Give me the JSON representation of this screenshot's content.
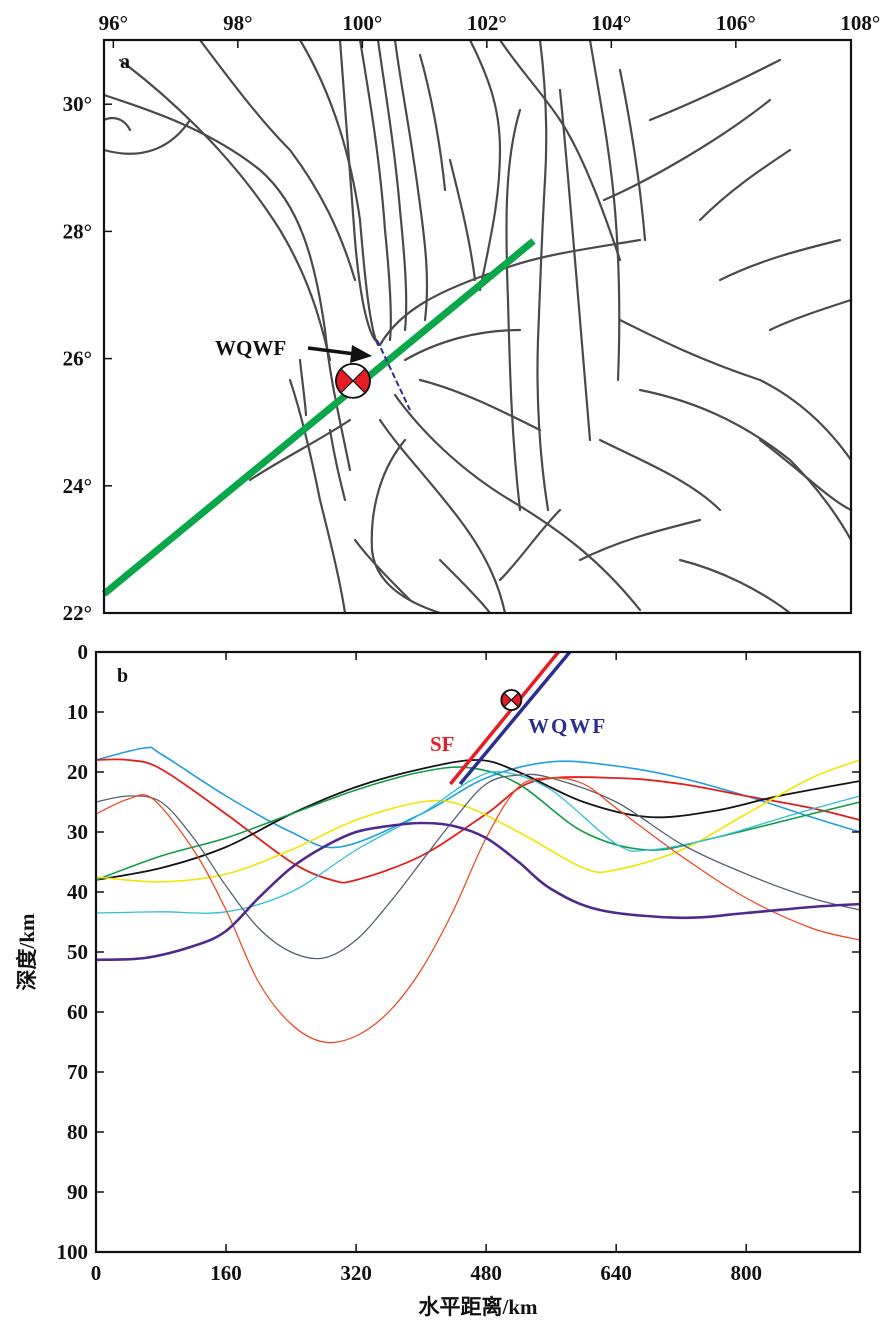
{
  "chart_data": [
    {
      "type": "map",
      "panel_label": "a",
      "lon_range": [
        95.85,
        107.85
      ],
      "lat_range": [
        22,
        31
      ],
      "x_tick_labels": [
        "96°",
        "98°",
        "100°",
        "102°",
        "104°",
        "106°",
        "108°"
      ],
      "x_ticks": [
        96,
        98,
        100,
        102,
        104,
        106,
        108
      ],
      "y_tick_labels": [
        "30°",
        "28°",
        "26°",
        "24°",
        "22°"
      ],
      "y_ticks": [
        30,
        28,
        26,
        24,
        22
      ],
      "profile_line": {
        "start": [
          95.85,
          22.3
        ],
        "end": [
          102.75,
          27.85
        ],
        "color": "#0aa64a"
      },
      "event": {
        "lon": 99.85,
        "lat": 25.65
      },
      "fault_annotation": "WQWF",
      "colors": {
        "fault": "#4a4a4a",
        "focal_fill": "#e51c23",
        "fault_trace": "#2b2f8f"
      }
    },
    {
      "type": "line",
      "panel_label": "b",
      "xlabel": "水平距离/km",
      "ylabel": "深度/km",
      "xlim": [
        0,
        940
      ],
      "ylim": [
        0,
        100
      ],
      "x_ticks": [
        0,
        160,
        320,
        480,
        640,
        800
      ],
      "x_tick_labels": [
        "0",
        "160",
        "320",
        "480",
        "640",
        "800"
      ],
      "y_ticks": [
        0,
        10,
        20,
        30,
        40,
        50,
        60,
        70,
        80,
        90,
        100
      ],
      "y_tick_labels": [
        "0",
        "10",
        "20",
        "30",
        "40",
        "50",
        "60",
        "70",
        "80",
        "90",
        "100"
      ],
      "series": [
        {
          "name": "sky-blue",
          "color": "#1f9ee0",
          "width": 1.6,
          "x": [
            0,
            60,
            80,
            160,
            240,
            300,
            400,
            480,
            560,
            640,
            720,
            800,
            880,
            940
          ],
          "y": [
            18,
            16,
            17,
            24,
            30,
            32.5,
            27,
            21,
            18.3,
            19,
            21,
            24,
            27.5,
            30
          ]
        },
        {
          "name": "red",
          "color": "#e0201c",
          "width": 1.8,
          "x": [
            0,
            40,
            80,
            160,
            240,
            290,
            320,
            400,
            480,
            540,
            640,
            720,
            800,
            880,
            940
          ],
          "y": [
            18,
            18,
            19.5,
            27,
            35,
            38,
            38,
            34,
            27,
            21.5,
            21,
            22,
            24,
            26,
            28
          ]
        },
        {
          "name": "black",
          "color": "#151515",
          "width": 1.8,
          "x": [
            0,
            80,
            160,
            240,
            320,
            400,
            470,
            520,
            600,
            680,
            760,
            840,
            940
          ],
          "y": [
            38,
            36,
            32.5,
            27,
            22.5,
            19.5,
            18,
            20,
            25,
            27.5,
            26.5,
            24,
            21.5
          ]
        },
        {
          "name": "green",
          "color": "#119a4a",
          "width": 1.6,
          "x": [
            0,
            80,
            160,
            240,
            320,
            400,
            460,
            520,
            600,
            680,
            760,
            880,
            940
          ],
          "y": [
            38,
            34,
            31,
            27,
            23,
            20,
            19.3,
            22,
            30,
            33,
            31,
            27,
            25
          ]
        },
        {
          "name": "yellow",
          "color": "#f2e400",
          "width": 1.6,
          "x": [
            0,
            80,
            160,
            240,
            320,
            400,
            450,
            520,
            600,
            640,
            720,
            800,
            880,
            940
          ],
          "y": [
            37.5,
            38.3,
            37,
            33,
            28,
            25,
            25.5,
            30,
            36,
            36.3,
            33,
            27,
            21,
            18
          ]
        },
        {
          "name": "cyan",
          "color": "#2ec0d6",
          "width": 1.3,
          "x": [
            0,
            80,
            160,
            240,
            320,
            400,
            460,
            500,
            560,
            640,
            680,
            760,
            860,
            940
          ],
          "y": [
            43.5,
            43.3,
            43.3,
            40,
            33,
            27,
            21.5,
            20,
            23,
            32,
            33,
            31,
            27,
            24
          ]
        },
        {
          "name": "slate-gray",
          "color": "#566272",
          "width": 1.3,
          "x": [
            0,
            40,
            80,
            120,
            160,
            200,
            240,
            280,
            320,
            360,
            400,
            440,
            480,
            520,
            560,
            640,
            720,
            800,
            880,
            940
          ],
          "y": [
            25,
            24,
            25,
            31,
            39,
            46,
            50,
            51,
            48,
            42,
            35,
            28,
            22,
            20.5,
            21,
            25,
            32,
            37,
            41,
            43
          ]
        },
        {
          "name": "orange-red",
          "color": "#f0401c",
          "width": 1.2,
          "x": [
            0,
            40,
            70,
            120,
            160,
            200,
            240,
            280,
            320,
            360,
            400,
            440,
            480,
            520,
            560,
            600,
            640,
            720,
            800,
            880,
            940
          ],
          "y": [
            27,
            24.5,
            24.5,
            33,
            43,
            55,
            62,
            65,
            64,
            60,
            53,
            43,
            31,
            22.5,
            21,
            22,
            26,
            34,
            41,
            46,
            48
          ]
        },
        {
          "name": "purple",
          "color": "#4f2a8c",
          "width": 2.6,
          "x": [
            0,
            60,
            120,
            160,
            200,
            240,
            280,
            320,
            360,
            400,
            440,
            480,
            520,
            560,
            620,
            720,
            800,
            880,
            940
          ],
          "y": [
            51.3,
            51,
            49,
            46.5,
            41,
            36,
            32.5,
            30,
            29,
            28.5,
            29,
            31,
            35,
            39.5,
            43,
            44.3,
            43.5,
            42.5,
            42
          ]
        }
      ],
      "faults": [
        {
          "label": "SF",
          "color": "#e51c23",
          "from": [
            436,
            22
          ],
          "to": [
            569,
            0
          ]
        },
        {
          "label": "WQWF",
          "color": "#2b2f8f",
          "from": [
            448,
            22
          ],
          "to": [
            583,
            0
          ]
        }
      ],
      "event": {
        "x": 511,
        "depth": 8
      }
    }
  ]
}
